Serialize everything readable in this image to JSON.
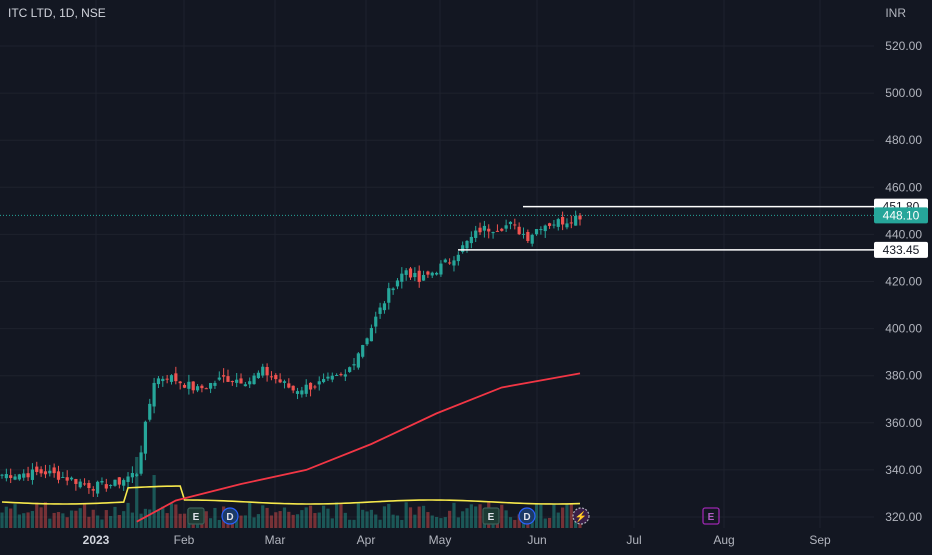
{
  "symbol": "ITC LTD, 1D, NSE",
  "currency": "INR",
  "last_price": "448.10",
  "colors": {
    "bg": "#131722",
    "up": "#26a69a",
    "down": "#ef5350",
    "sma_red": "#f23645",
    "vol_ma": "#f7e94c",
    "level": "#ffffff",
    "grid": "#1e222d",
    "text": "#b2b5be"
  },
  "chart_data": {
    "type": "candlestick",
    "y_ticks": [
      "520.00",
      "500.00",
      "480.00",
      "460.00",
      "440.00",
      "420.00",
      "400.00",
      "380.00",
      "360.00",
      "340.00",
      "320.00"
    ],
    "x_ticks": [
      "2023",
      "Feb",
      "Mar",
      "Apr",
      "May",
      "Jun",
      "Jul",
      "Aug",
      "Sep"
    ],
    "ylim": [
      316,
      528
    ],
    "levels": [
      {
        "label": "451.80",
        "value": 451.8
      },
      {
        "label": "433.45",
        "value": 433.45
      }
    ],
    "price_line": 448.1,
    "events": [
      {
        "icon": "E",
        "month": "Feb"
      },
      {
        "icon": "D",
        "month": "Feb"
      },
      {
        "icon": "E",
        "month": "May"
      },
      {
        "icon": "D",
        "month": "Jun"
      },
      {
        "icon": "⚡",
        "month": "Jun"
      },
      {
        "icon": "E",
        "month": "Aug"
      }
    ],
    "ohlc_anchors": [
      [
        1,
        338
      ],
      [
        10,
        339
      ],
      [
        16,
        336
      ],
      [
        21,
        333
      ],
      [
        26,
        334
      ],
      [
        31,
        339
      ],
      [
        35,
        378
      ],
      [
        38,
        380
      ],
      [
        45,
        374
      ],
      [
        51,
        379
      ],
      [
        57,
        378
      ],
      [
        60,
        382
      ],
      [
        67,
        374
      ],
      [
        72,
        376
      ],
      [
        79,
        380
      ],
      [
        84,
        397
      ],
      [
        90,
        419
      ],
      [
        93,
        425
      ],
      [
        96,
        420
      ],
      [
        103,
        429
      ],
      [
        110,
        442
      ],
      [
        117,
        444
      ],
      [
        121,
        439
      ],
      [
        124,
        444
      ],
      [
        130,
        446
      ],
      [
        133,
        448
      ]
    ],
    "sma_anchors": [
      [
        31,
        318
      ],
      [
        40,
        327
      ],
      [
        55,
        334
      ],
      [
        70,
        340
      ],
      [
        85,
        351
      ],
      [
        100,
        364
      ],
      [
        115,
        375
      ],
      [
        133,
        381
      ]
    ]
  }
}
